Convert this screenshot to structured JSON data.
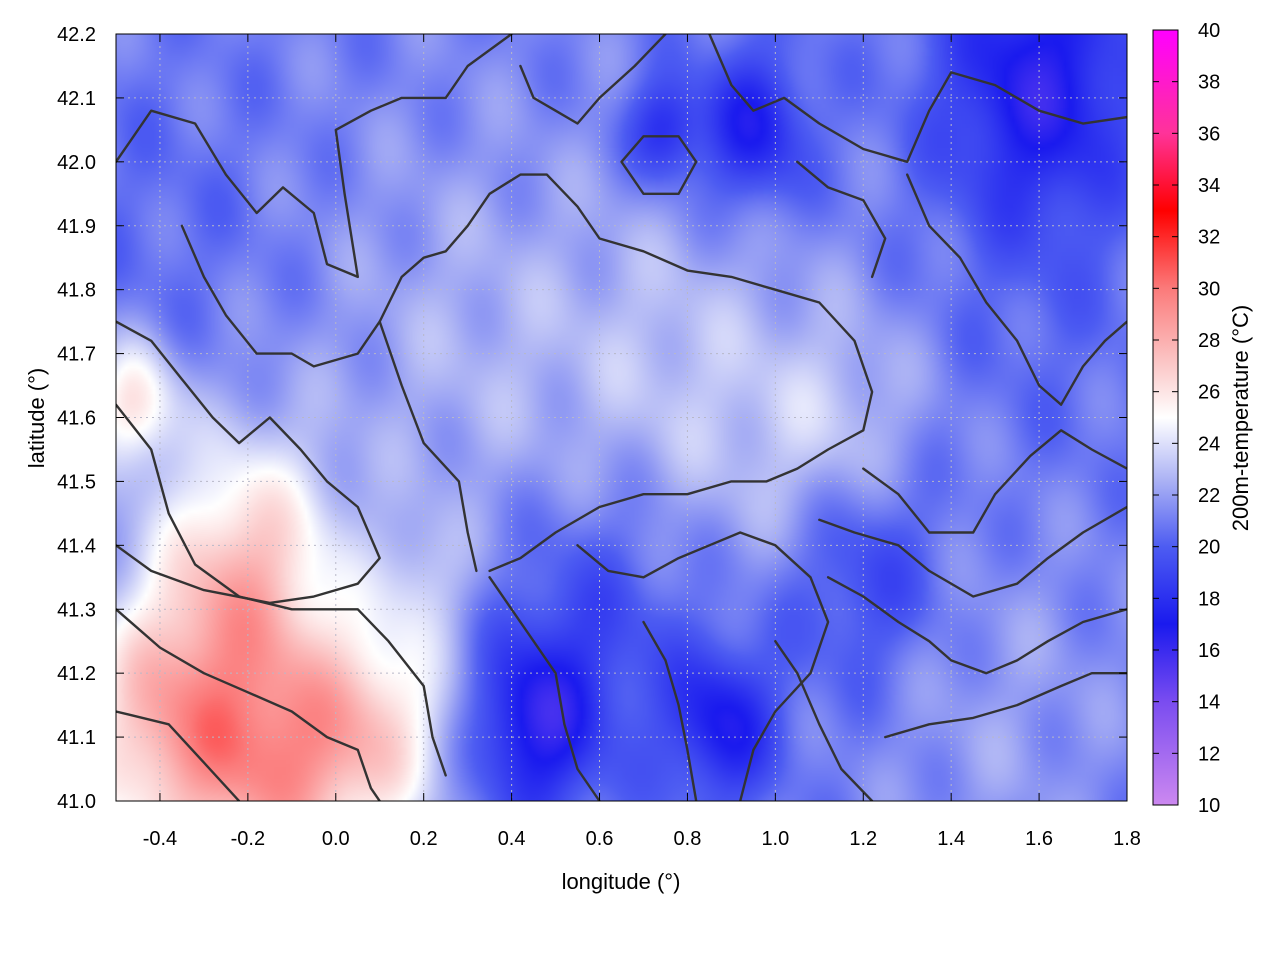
{
  "chart_data": {
    "type": "heatmap",
    "title": "",
    "xlabel": "longitude (°)",
    "ylabel": "latitude (°)",
    "xlim": [
      -0.5,
      1.8
    ],
    "ylim": [
      41.0,
      42.2
    ],
    "x_ticks": [
      "-0.4",
      "-0.2",
      "0.0",
      "0.2",
      "0.4",
      "0.6",
      "0.8",
      "1.0",
      "1.2",
      "1.4",
      "1.6",
      "1.8"
    ],
    "y_ticks": [
      "41.0",
      "41.1",
      "41.2",
      "41.3",
      "41.4",
      "41.5",
      "41.6",
      "41.7",
      "41.8",
      "41.9",
      "42.0",
      "42.1",
      "42.2"
    ],
    "grid": true,
    "colorbar": {
      "label": "200m-temperature (°C)",
      "min": 10,
      "max": 40,
      "ticks": [
        "10",
        "12",
        "14",
        "16",
        "18",
        "20",
        "22",
        "24",
        "26",
        "28",
        "30",
        "32",
        "34",
        "36",
        "38",
        "40"
      ],
      "stops": [
        {
          "value": 10,
          "color": "#cc88f0"
        },
        {
          "value": 14,
          "color": "#7a4cf0"
        },
        {
          "value": 17,
          "color": "#1a1aee"
        },
        {
          "value": 20,
          "color": "#4d5cf2"
        },
        {
          "value": 22.5,
          "color": "#a9b0f4"
        },
        {
          "value": 25,
          "color": "#ffffff"
        },
        {
          "value": 27,
          "color": "#fbc9c9"
        },
        {
          "value": 30,
          "color": "#fb7a7a"
        },
        {
          "value": 33,
          "color": "#ff0000"
        },
        {
          "value": 36,
          "color": "#ff3399"
        },
        {
          "value": 40,
          "color": "#ff00ff"
        }
      ]
    },
    "field_blobs": [
      {
        "lon": -0.38,
        "lat": 41.12,
        "r": 0.22,
        "t": 27.5
      },
      {
        "lon": -0.12,
        "lat": 41.05,
        "r": 0.2,
        "t": 27.0
      },
      {
        "lon": -0.2,
        "lat": 41.38,
        "r": 0.2,
        "t": 26.5
      },
      {
        "lon": -0.46,
        "lat": 41.62,
        "r": 0.1,
        "t": 26.0
      },
      {
        "lon": 0.1,
        "lat": 41.12,
        "r": 0.18,
        "t": 25.5
      },
      {
        "lon": -0.4,
        "lat": 41.9,
        "r": 0.25,
        "t": 20.5
      },
      {
        "lon": 0.3,
        "lat": 41.7,
        "r": 0.35,
        "t": 22.5
      },
      {
        "lon": 0.8,
        "lat": 41.65,
        "r": 0.3,
        "t": 23.0
      },
      {
        "lon": 1.15,
        "lat": 41.55,
        "r": 0.2,
        "t": 23.5
      },
      {
        "lon": 0.45,
        "lat": 41.12,
        "r": 0.14,
        "t": 16.5
      },
      {
        "lon": 0.6,
        "lat": 41.3,
        "r": 0.22,
        "t": 19.0
      },
      {
        "lon": 0.88,
        "lat": 41.12,
        "r": 0.12,
        "t": 17.0
      },
      {
        "lon": 1.2,
        "lat": 41.38,
        "r": 0.18,
        "t": 18.0
      },
      {
        "lon": 1.6,
        "lat": 42.12,
        "r": 0.22,
        "t": 16.5
      },
      {
        "lon": 0.95,
        "lat": 42.05,
        "r": 0.12,
        "t": 17.0
      },
      {
        "lon": 0.75,
        "lat": 42.05,
        "r": 0.08,
        "t": 17.5
      },
      {
        "lon": 1.5,
        "lat": 41.15,
        "r": 0.3,
        "t": 22.0
      },
      {
        "lon": 1.6,
        "lat": 41.7,
        "r": 0.25,
        "t": 20.5
      },
      {
        "lon": 0.2,
        "lat": 41.35,
        "r": 0.1,
        "t": 22.5
      }
    ],
    "field_base_t": 21.0,
    "contour_lines": [
      [
        [
          -0.5,
          41.75
        ],
        [
          -0.42,
          41.72
        ],
        [
          -0.35,
          41.66
        ],
        [
          -0.28,
          41.6
        ],
        [
          -0.22,
          41.56
        ],
        [
          -0.15,
          41.6
        ],
        [
          -0.08,
          41.55
        ],
        [
          -0.02,
          41.5
        ],
        [
          0.05,
          41.46
        ],
        [
          0.1,
          41.38
        ],
        [
          0.05,
          41.34
        ],
        [
          -0.05,
          41.32
        ],
        [
          -0.15,
          41.31
        ],
        [
          -0.3,
          41.33
        ],
        [
          -0.42,
          41.36
        ],
        [
          -0.5,
          41.4
        ]
      ],
      [
        [
          -0.5,
          41.62
        ],
        [
          -0.42,
          41.55
        ],
        [
          -0.38,
          41.45
        ],
        [
          -0.32,
          41.37
        ],
        [
          -0.22,
          41.32
        ],
        [
          -0.1,
          41.3
        ],
        [
          0.05,
          41.3
        ],
        [
          0.12,
          41.25
        ],
        [
          0.2,
          41.18
        ],
        [
          0.22,
          41.1
        ],
        [
          0.25,
          41.04
        ]
      ],
      [
        [
          -0.5,
          41.3
        ],
        [
          -0.4,
          41.24
        ],
        [
          -0.3,
          41.2
        ],
        [
          -0.2,
          41.17
        ],
        [
          -0.1,
          41.14
        ],
        [
          -0.02,
          41.1
        ],
        [
          0.05,
          41.08
        ],
        [
          0.08,
          41.02
        ],
        [
          0.1,
          41.0
        ]
      ],
      [
        [
          -0.5,
          41.14
        ],
        [
          -0.38,
          41.12
        ],
        [
          -0.3,
          41.06
        ],
        [
          -0.22,
          41.0
        ]
      ],
      [
        [
          -0.5,
          42.0
        ],
        [
          -0.42,
          42.08
        ],
        [
          -0.32,
          42.06
        ],
        [
          -0.25,
          41.98
        ],
        [
          -0.18,
          41.92
        ],
        [
          -0.12,
          41.96
        ],
        [
          -0.05,
          41.92
        ],
        [
          -0.02,
          41.84
        ],
        [
          0.05,
          41.82
        ],
        [
          0.02,
          41.95
        ],
        [
          0.0,
          42.05
        ],
        [
          0.08,
          42.08
        ],
        [
          0.15,
          42.1
        ],
        [
          0.25,
          42.1
        ],
        [
          0.3,
          42.15
        ],
        [
          0.4,
          42.2
        ]
      ],
      [
        [
          -0.35,
          41.9
        ],
        [
          -0.3,
          41.82
        ],
        [
          -0.25,
          41.76
        ],
        [
          -0.18,
          41.7
        ],
        [
          -0.1,
          41.7
        ],
        [
          -0.05,
          41.68
        ],
        [
          0.05,
          41.7
        ],
        [
          0.1,
          41.75
        ],
        [
          0.15,
          41.82
        ],
        [
          0.2,
          41.85
        ],
        [
          0.25,
          41.86
        ],
        [
          0.3,
          41.9
        ],
        [
          0.35,
          41.95
        ],
        [
          0.42,
          41.98
        ],
        [
          0.48,
          41.98
        ],
        [
          0.55,
          41.93
        ],
        [
          0.6,
          41.88
        ],
        [
          0.7,
          41.86
        ],
        [
          0.8,
          41.83
        ],
        [
          0.9,
          41.82
        ],
        [
          1.0,
          41.8
        ],
        [
          1.1,
          41.78
        ],
        [
          1.18,
          41.72
        ],
        [
          1.22,
          41.64
        ],
        [
          1.2,
          41.58
        ],
        [
          1.12,
          41.55
        ],
        [
          1.05,
          41.52
        ],
        [
          0.98,
          41.5
        ],
        [
          0.9,
          41.5
        ],
        [
          0.8,
          41.48
        ],
        [
          0.7,
          41.48
        ],
        [
          0.6,
          41.46
        ],
        [
          0.5,
          41.42
        ],
        [
          0.42,
          41.38
        ],
        [
          0.35,
          41.36
        ]
      ],
      [
        [
          0.1,
          41.75
        ],
        [
          0.15,
          41.65
        ],
        [
          0.2,
          41.56
        ],
        [
          0.28,
          41.5
        ],
        [
          0.3,
          41.42
        ],
        [
          0.32,
          41.36
        ]
      ],
      [
        [
          0.42,
          42.15
        ],
        [
          0.45,
          42.1
        ],
        [
          0.5,
          42.08
        ],
        [
          0.55,
          42.06
        ],
        [
          0.6,
          42.1
        ],
        [
          0.68,
          42.15
        ],
        [
          0.75,
          42.2
        ]
      ],
      [
        [
          0.85,
          42.2
        ],
        [
          0.9,
          42.12
        ],
        [
          0.95,
          42.08
        ],
        [
          1.02,
          42.1
        ],
        [
          1.1,
          42.06
        ],
        [
          1.2,
          42.02
        ],
        [
          1.3,
          42.0
        ],
        [
          1.35,
          42.08
        ],
        [
          1.4,
          42.14
        ],
        [
          1.5,
          42.12
        ],
        [
          1.6,
          42.08
        ],
        [
          1.7,
          42.06
        ],
        [
          1.8,
          42.07
        ]
      ],
      [
        [
          1.3,
          41.98
        ],
        [
          1.35,
          41.9
        ],
        [
          1.42,
          41.85
        ],
        [
          1.48,
          41.78
        ],
        [
          1.55,
          41.72
        ],
        [
          1.6,
          41.65
        ],
        [
          1.65,
          41.62
        ],
        [
          1.7,
          41.68
        ],
        [
          1.75,
          41.72
        ],
        [
          1.8,
          41.75
        ]
      ],
      [
        [
          0.35,
          41.35
        ],
        [
          0.4,
          41.3
        ],
        [
          0.45,
          41.25
        ],
        [
          0.5,
          41.2
        ],
        [
          0.52,
          41.12
        ],
        [
          0.55,
          41.05
        ],
        [
          0.6,
          41.0
        ]
      ],
      [
        [
          0.55,
          41.4
        ],
        [
          0.62,
          41.36
        ],
        [
          0.7,
          41.35
        ],
        [
          0.78,
          41.38
        ],
        [
          0.85,
          41.4
        ],
        [
          0.92,
          41.42
        ],
        [
          1.0,
          41.4
        ],
        [
          1.08,
          41.35
        ],
        [
          1.12,
          41.28
        ],
        [
          1.08,
          41.2
        ],
        [
          1.0,
          41.14
        ],
        [
          0.95,
          41.08
        ],
        [
          0.92,
          41.0
        ]
      ],
      [
        [
          0.7,
          41.28
        ],
        [
          0.75,
          41.22
        ],
        [
          0.78,
          41.15
        ],
        [
          0.8,
          41.08
        ],
        [
          0.82,
          41.0
        ]
      ],
      [
        [
          1.0,
          41.25
        ],
        [
          1.05,
          41.2
        ],
        [
          1.1,
          41.12
        ],
        [
          1.15,
          41.05
        ],
        [
          1.22,
          41.0
        ]
      ],
      [
        [
          1.12,
          41.35
        ],
        [
          1.2,
          41.32
        ],
        [
          1.28,
          41.28
        ],
        [
          1.35,
          41.25
        ],
        [
          1.4,
          41.22
        ],
        [
          1.48,
          41.2
        ],
        [
          1.55,
          41.22
        ],
        [
          1.62,
          41.25
        ],
        [
          1.7,
          41.28
        ],
        [
          1.8,
          41.3
        ]
      ],
      [
        [
          1.1,
          41.44
        ],
        [
          1.18,
          41.42
        ],
        [
          1.28,
          41.4
        ],
        [
          1.35,
          41.36
        ],
        [
          1.45,
          41.32
        ],
        [
          1.55,
          41.34
        ],
        [
          1.62,
          41.38
        ],
        [
          1.7,
          41.42
        ],
        [
          1.8,
          41.46
        ]
      ],
      [
        [
          1.25,
          41.1
        ],
        [
          1.35,
          41.12
        ],
        [
          1.45,
          41.13
        ],
        [
          1.55,
          41.15
        ],
        [
          1.65,
          41.18
        ],
        [
          1.72,
          41.2
        ],
        [
          1.8,
          41.2
        ]
      ],
      [
        [
          1.2,
          41.52
        ],
        [
          1.28,
          41.48
        ],
        [
          1.35,
          41.42
        ],
        [
          1.45,
          41.42
        ],
        [
          1.5,
          41.48
        ],
        [
          1.58,
          41.54
        ],
        [
          1.65,
          41.58
        ],
        [
          1.72,
          41.55
        ],
        [
          1.8,
          41.52
        ]
      ],
      [
        [
          1.05,
          42.0
        ],
        [
          1.12,
          41.96
        ],
        [
          1.2,
          41.94
        ],
        [
          1.25,
          41.88
        ],
        [
          1.22,
          41.82
        ]
      ],
      [
        [
          0.65,
          42.0
        ],
        [
          0.7,
          41.95
        ],
        [
          0.78,
          41.95
        ],
        [
          0.82,
          42.0
        ],
        [
          0.78,
          42.04
        ],
        [
          0.7,
          42.04
        ],
        [
          0.65,
          42.0
        ]
      ]
    ]
  }
}
